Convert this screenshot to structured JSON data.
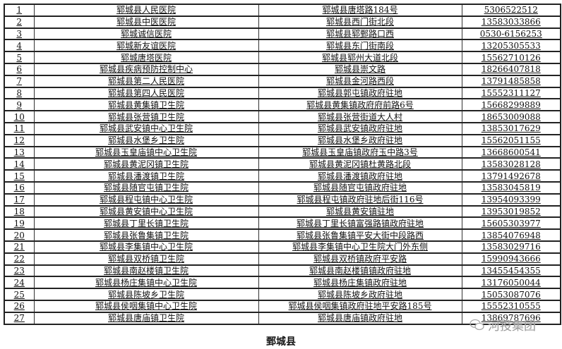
{
  "rows": [
    [
      "1",
      "郓城县人民医院",
      "郓城县唐塔路184号",
      "5306522512"
    ],
    [
      "2",
      "郓城县中医医院",
      "郓城县西门街北段",
      "13583033866"
    ],
    [
      "3",
      "郓城诚信医院",
      "郓城县郓鄄路口西",
      "0530-6156253"
    ],
    [
      "4",
      "郓城新友谊医院",
      "郓城县东门街南段",
      "13205305533"
    ],
    [
      "5",
      "郓城唐塔医院",
      "郓城县郓州大道北段",
      "15562710126"
    ],
    [
      "6",
      "郓城县疾病预防控制中心",
      "郓城县崇文路",
      "18266407818"
    ],
    [
      "7",
      "郓城县第二人民医院",
      "郓城县金河路西段",
      "13791485858"
    ],
    [
      "8",
      "郓城县第四人民医院",
      "郓城县郭屯镇政府驻地",
      "15552311127"
    ],
    [
      "9",
      "郓城县黄集镇卫生院",
      "郓城县黄集镇政府府前路6号",
      "15668299889"
    ],
    [
      "10",
      "郓城县张营镇卫生院",
      "郓城县张营街道大人村",
      "18653009088"
    ],
    [
      "11",
      "郓城县武安镇中心卫生院",
      "郓城县武安镇政府驻地",
      "13853017629"
    ],
    [
      "12",
      "郓城县水堡乡卫生院",
      "郓城县水堡乡政府驻地",
      "15562051155"
    ],
    [
      "13",
      "郓城县玉皇庙镇中心卫生院",
      "郓城县玉皇庙镇政府玉中路3号",
      "13668600541"
    ],
    [
      "14",
      "郓城县黄泥冈镇卫生院",
      "郓城县黄泥冈镇杜黄路北段",
      "13583028128"
    ],
    [
      "15",
      "郓城县潘渡镇卫生院",
      "郓城县潘渡镇政府驻地",
      "13791492678"
    ],
    [
      "16",
      "郓城县随官屯镇卫生院",
      "郓城县随官屯镇政府驻地",
      "13583045819"
    ],
    [
      "17",
      "郓城县程屯镇中心卫生院",
      "郓城县程屯镇政府驻地后街116号",
      "13954093399"
    ],
    [
      "18",
      "郓城县黄安镇中心卫生院",
      "郓城县黄安镇驻地",
      "13953019852"
    ],
    [
      "19",
      "郓城县丁里长镇卫生院",
      "郓城县丁里长镇富强路镇政府驻地",
      "15605303977"
    ],
    [
      "20",
      "郓城县张鲁集镇卫生院",
      "郓城县张鲁集镇平安大街中段路西",
      "13854076948"
    ],
    [
      "21",
      "郓城县李集镇中心卫生院",
      "郓城县李集镇中心卫生院大门外东侧",
      "13583029716"
    ],
    [
      "22",
      "郓城县双桥镇卫生院",
      "郓城县双桥镇政府平安路",
      "15990943666"
    ],
    [
      "23",
      "郓城县南赵楼镇卫生院",
      "郓城县南赵楼镇镇政府驻地",
      "13455454355"
    ],
    [
      "24",
      "郓城县杨庄集镇中心卫生院",
      "郓城县杨庄集镇政府驻地",
      "13176050044"
    ],
    [
      "25",
      "郓城县陈坡乡卫生院",
      "郓城县陈坡乡政府驻地",
      "15053087076"
    ],
    [
      "26",
      "郓城县侯咽集镇中心卫生院",
      "郓城县侯咽集镇政府驻地平安路185号",
      "15552310555"
    ],
    [
      "27",
      "郓城县唐庙镇卫生院",
      "郓城县唐庙镇政府驻地",
      "13869787696"
    ]
  ],
  "caption": "鄄城县",
  "watermark": {
    "text": "河投集团",
    "icon": "wechat-icon"
  }
}
